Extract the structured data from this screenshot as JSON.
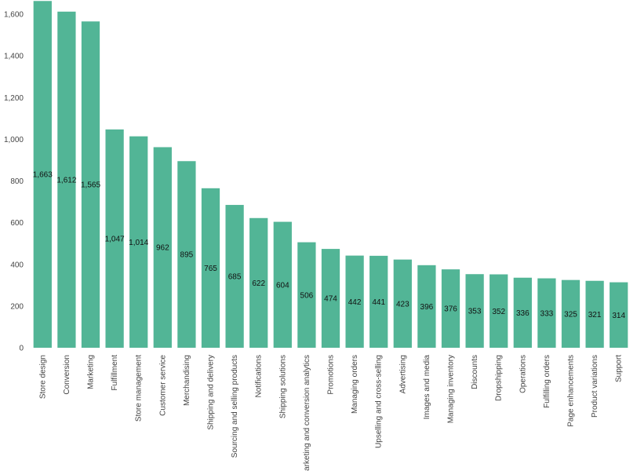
{
  "chart_data": {
    "type": "bar",
    "title": "",
    "xlabel": "",
    "ylabel": "",
    "ylim": [
      0,
      1600
    ],
    "yticks": [
      0,
      200,
      400,
      600,
      800,
      1000,
      1200,
      1400,
      1600
    ],
    "ytick_labels": [
      "0",
      "200",
      "400",
      "600",
      "800",
      "1,000",
      "1,200",
      "1,400",
      "1,600"
    ],
    "grid": false,
    "bar_color": "#52b596",
    "categories": [
      "Store design",
      "Conversion",
      "Marketing",
      "Fulfillment",
      "Store management",
      "Customer service",
      "Merchandising",
      "Shipping and delivery",
      "Sourcing and selling products",
      "Notifications",
      "Shipping solutions",
      "Marketing and conversion analytics",
      "Promotions",
      "Managing orders",
      "Upselling and cross-selling",
      "Advertising",
      "Images and media",
      "Managing inventory",
      "Discounts",
      "Dropshipping",
      "Operations",
      "Fulfilling orders",
      "Page enhancements",
      "Product variations",
      "Support"
    ],
    "values": [
      1663,
      1612,
      1565,
      1047,
      1014,
      962,
      895,
      765,
      685,
      622,
      604,
      506,
      474,
      442,
      441,
      423,
      396,
      376,
      353,
      352,
      336,
      333,
      325,
      321,
      314
    ],
    "value_labels": [
      "1,663",
      "1,612",
      "1,565",
      "1,047",
      "1,014",
      "962",
      "895",
      "765",
      "685",
      "622",
      "604",
      "506",
      "474",
      "442",
      "441",
      "423",
      "396",
      "376",
      "353",
      "352",
      "336",
      "333",
      "325",
      "321",
      "314"
    ]
  }
}
